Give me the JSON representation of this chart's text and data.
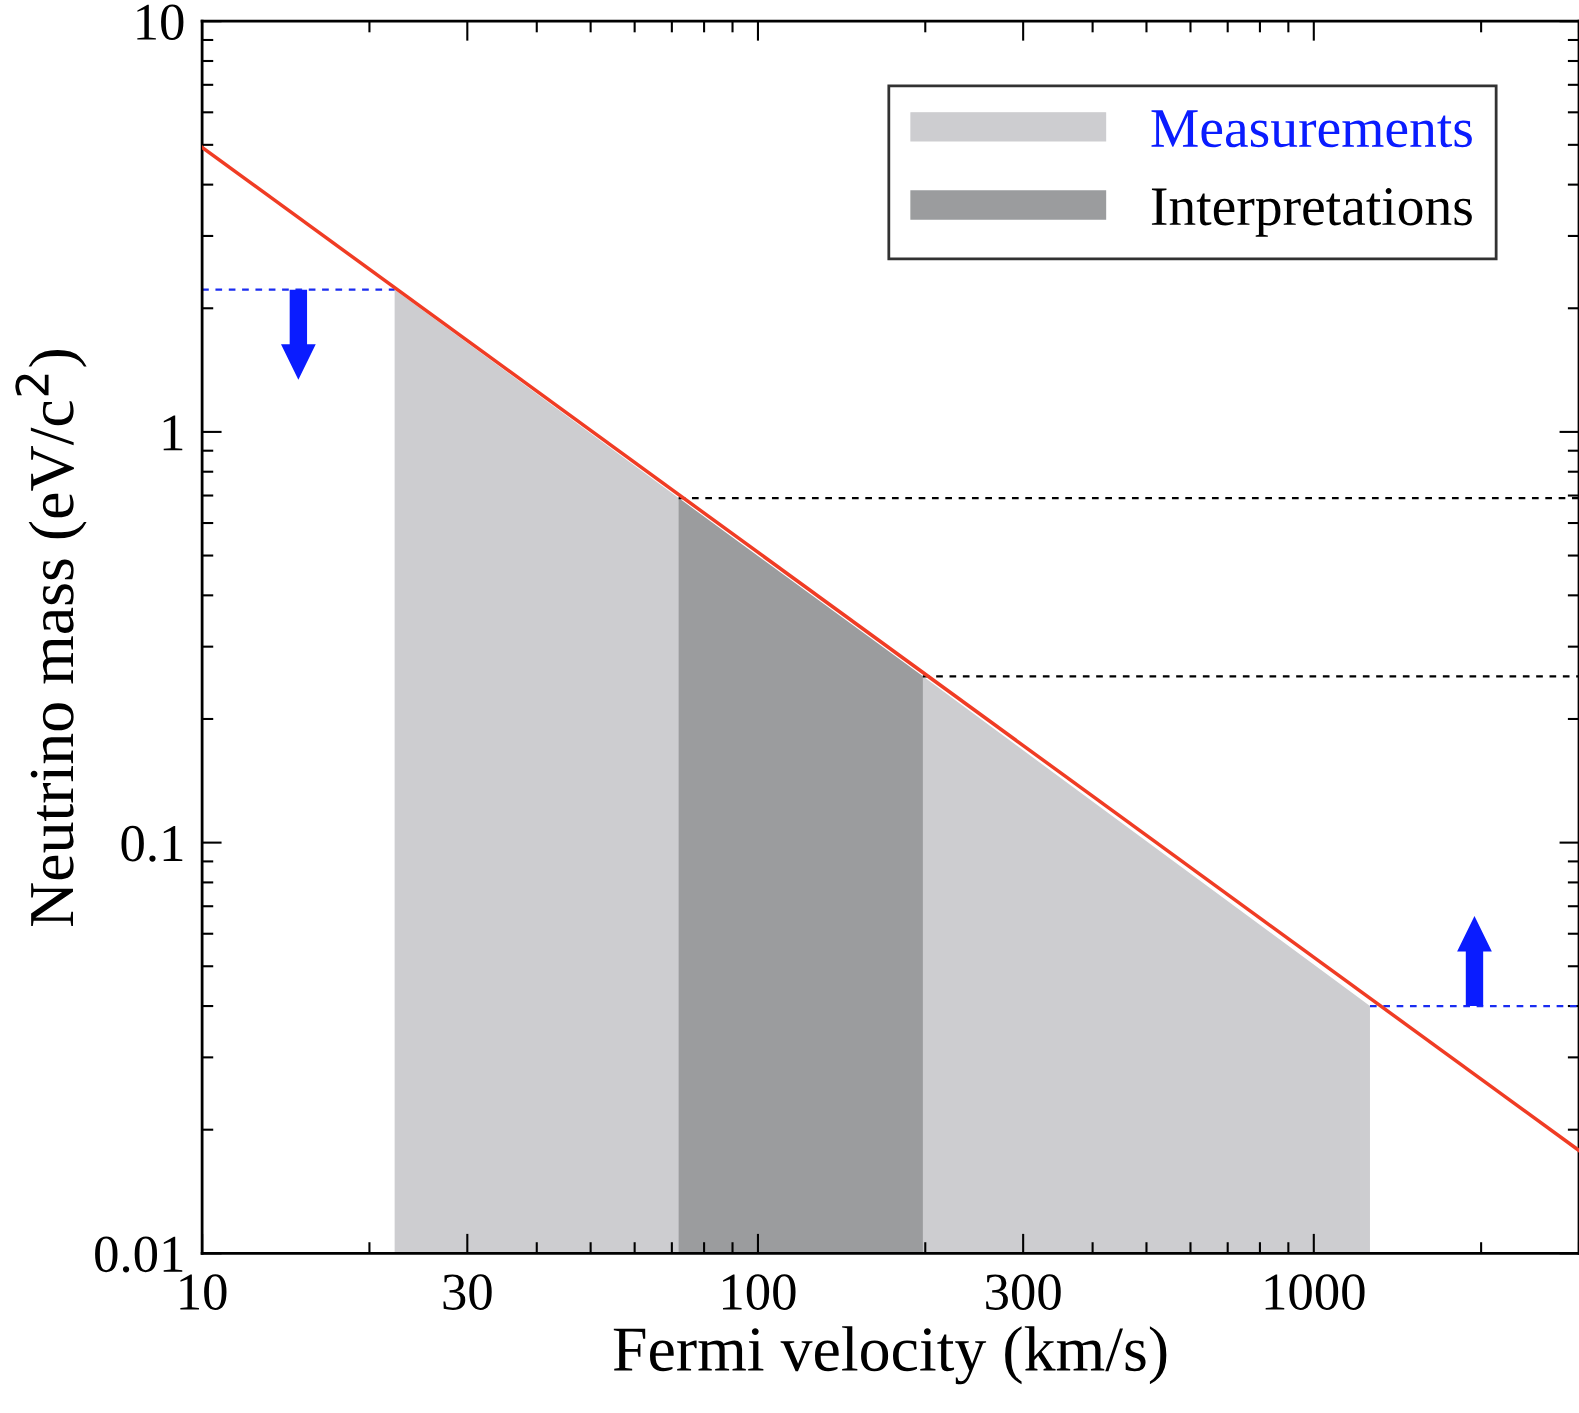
{
  "chart_data": {
    "type": "line",
    "xlabel": "Fermi velocity (km/s)",
    "ylabel": "Neutrino mass (eV/c$^{2}$)",
    "log": "xy",
    "xlim": [
      10,
      3000
    ],
    "ylim": [
      0.01,
      10
    ],
    "xticks": [
      10,
      30,
      100,
      300,
      1000
    ],
    "yticks": [
      0.01,
      0.1,
      1,
      10
    ],
    "grid": false,
    "legend": "top right",
    "series": [
      {
        "name": "Measurements",
        "type": "area",
        "color": "#cdcdd0",
        "x": [
          22.2,
          72,
          198,
          1262
        ],
        "values": [
          2.22,
          0.69,
          0.254,
          0.04
        ]
      },
      {
        "name": "Interpretations",
        "type": "area",
        "color": "#9b9c9e",
        "x": [
          72,
          198
        ],
        "values": [
          0.69,
          0.254
        ]
      },
      {
        "color": "#f03c24",
        "line_style": "solid",
        "x": [
          10,
          3000
        ],
        "values": [
          4.93,
          0.0178
        ]
      },
      {
        "color": "#1a2cf0",
        "line_style": "dashed",
        "x": [
          10,
          22.2
        ],
        "values": [
          2.22,
          2.22
        ]
      },
      {
        "color": "#000000",
        "line_style": "dashed",
        "x": [
          72,
          3000
        ],
        "values": [
          0.69,
          0.69
        ]
      },
      {
        "color": "#000000",
        "line_style": "dashed",
        "x": [
          198,
          3000
        ],
        "values": [
          0.254,
          0.254
        ]
      },
      {
        "color": "#1a2cf0",
        "line_style": "dashed",
        "x": [
          1262,
          3000
        ],
        "values": [
          0.04,
          0.04
        ]
      }
    ]
  }
}
